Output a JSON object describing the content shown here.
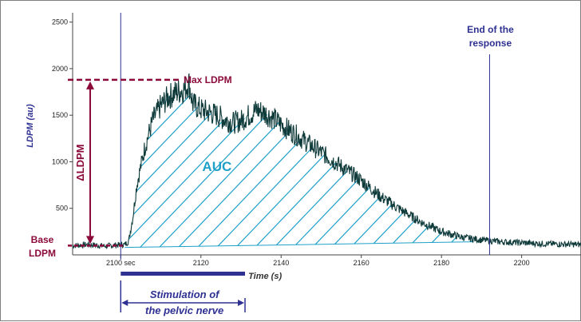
{
  "colors": {
    "trace": "#0f3a3a",
    "annotation": "#8b0a3a",
    "stimulus": "#2e3192",
    "hatch": "#1fa0c8",
    "axis": "#444444"
  },
  "chart_data": {
    "type": "line",
    "xlabel": "Time (s)",
    "ylabel": "LDPM (au)",
    "xlim": [
      2088,
      2215
    ],
    "ylim": [
      0,
      2600
    ],
    "x_ticks": [
      2100,
      2120,
      2140,
      2160,
      2180,
      2200
    ],
    "x_tick_labels": [
      "2100 sec",
      "2120",
      "2140",
      "2160",
      "2180",
      "2200"
    ],
    "y_ticks": [
      500,
      1000,
      1500,
      2000,
      2500
    ],
    "y_tick_labels": [
      "500",
      "1000",
      "1500",
      "2000",
      "2500"
    ],
    "grid": false,
    "series": [
      {
        "x": [
          2088,
          2092,
          2096,
          2099,
          2101,
          2102,
          2103,
          2104,
          2106,
          2108,
          2110,
          2112,
          2114,
          2116,
          2117,
          2118,
          2120,
          2122,
          2124,
          2126,
          2128,
          2130,
          2132,
          2134,
          2136,
          2138,
          2140,
          2145,
          2150,
          2155,
          2160,
          2165,
          2170,
          2175,
          2180,
          2185,
          2190,
          2195,
          2200,
          2205,
          2210,
          2215
        ],
        "y": [
          100,
          110,
          95,
          105,
          110,
          150,
          400,
          750,
          1150,
          1450,
          1600,
          1700,
          1750,
          1780,
          1850,
          1620,
          1560,
          1530,
          1500,
          1450,
          1420,
          1440,
          1500,
          1560,
          1520,
          1470,
          1400,
          1250,
          1100,
          950,
          800,
          620,
          480,
          350,
          250,
          190,
          160,
          140,
          130,
          120,
          115,
          110
        ]
      }
    ],
    "annotations": {
      "max_label": "Max LDPM",
      "max_value": 1880,
      "base_label_line1": "Base",
      "base_label_line2": "LDPM",
      "base_value": 100,
      "delta_label": "ΔLDPM",
      "auc_label": "AUC",
      "stim_start": 2100,
      "stim_end": 2131,
      "stim_label_line1": "Stimulation of",
      "stim_label_line2": "the pelvic nerve",
      "end_time": 2192,
      "end_label_line1": "End of the",
      "end_label_line2": "response"
    }
  }
}
